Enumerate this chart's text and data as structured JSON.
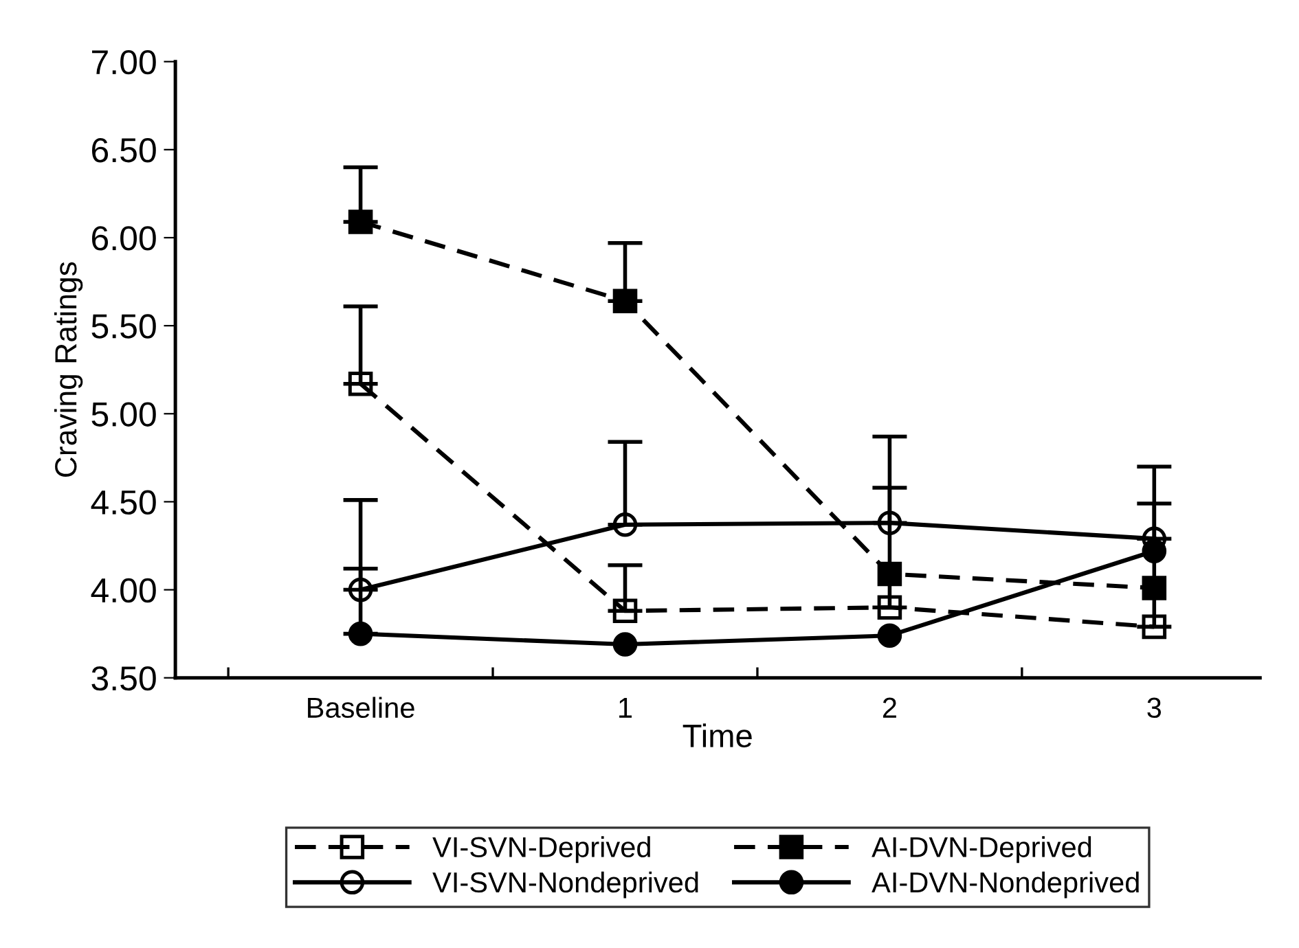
{
  "chart_data": {
    "type": "line",
    "xlabel": "Time",
    "ylabel": "Craving Ratings",
    "categories": [
      "Baseline",
      "1",
      "2",
      "3"
    ],
    "ylim": [
      3.5,
      7.0
    ],
    "yticks": [
      {
        "value": 3.5,
        "label": "3.50"
      },
      {
        "value": 4.0,
        "label": "4.00"
      },
      {
        "value": 4.5,
        "label": "4.50"
      },
      {
        "value": 5.0,
        "label": "5.00"
      },
      {
        "value": 5.5,
        "label": "5.50"
      },
      {
        "value": 6.0,
        "label": "6.00"
      },
      {
        "value": 6.5,
        "label": "6.50"
      },
      {
        "value": 7.0,
        "label": "7.00"
      }
    ],
    "grid": false,
    "legend": "bottom",
    "series": [
      {
        "name": "VI-SVN-Deprived",
        "color": "#000000",
        "line_style": "dashed",
        "marker": "square",
        "values": [
          5.17,
          3.88,
          3.9,
          3.79
        ],
        "errors": [
          [
            5.17,
            5.61
          ],
          [
            3.88,
            4.14
          ],
          [
            3.9,
            4.58
          ],
          [
            3.79,
            4.49
          ]
        ]
      },
      {
        "name": "AI-DVN-Deprived",
        "color": "#000000",
        "line_style": "dashed",
        "marker": "square",
        "values": [
          6.09,
          5.64,
          4.09,
          4.01
        ],
        "errors": [
          [
            6.09,
            6.4
          ],
          [
            5.64,
            5.97
          ],
          null,
          null
        ]
      },
      {
        "name": "VI-SVN-Nondeprived",
        "color": "#000000",
        "line_style": "solid",
        "marker": "circle",
        "values": [
          4.0,
          4.37,
          4.38,
          4.29
        ],
        "errors": [
          [
            4.0,
            4.51
          ],
          [
            4.37,
            4.84
          ],
          [
            4.38,
            4.87
          ],
          [
            4.29,
            4.7
          ]
        ]
      },
      {
        "name": "AI-DVN-Nondeprived",
        "color": "#000000",
        "line_style": "solid",
        "marker": "circle",
        "values": [
          3.75,
          3.69,
          3.74,
          4.22
        ],
        "errors": [
          [
            3.75,
            4.12
          ],
          null,
          null,
          null
        ]
      }
    ]
  }
}
